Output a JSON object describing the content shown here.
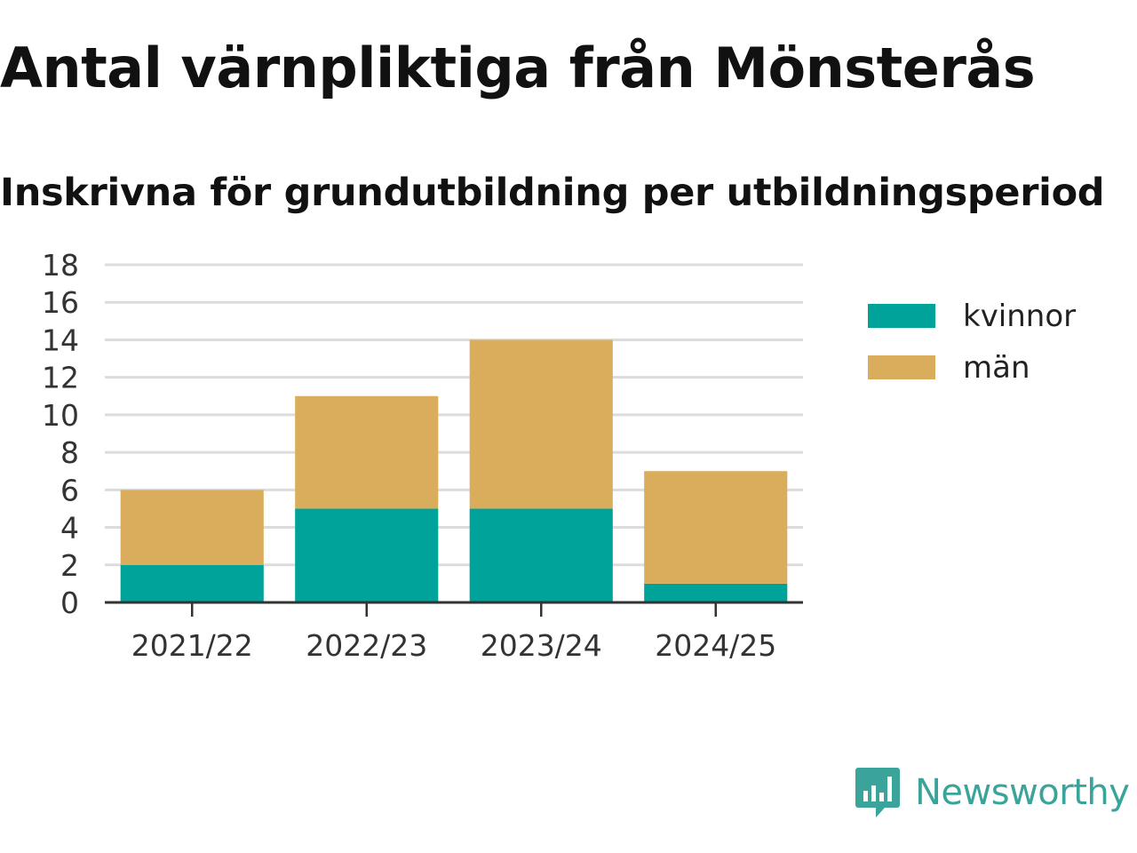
{
  "header": {
    "title": "Antal värnpliktiga från Mönsterås",
    "subtitle": "Inskrivna för grundutbildning per utbildningsperiod"
  },
  "brand": {
    "name": "Newsworthy",
    "icon": "bar-chart-speech-bubble-icon",
    "color": "#3aa39a"
  },
  "chart_data": {
    "type": "bar",
    "stacked": true,
    "title": "Antal värnpliktiga från Mönsterås",
    "subtitle": "Inskrivna för grundutbildning per utbildningsperiod",
    "xlabel": "",
    "ylabel": "",
    "categories": [
      "2021/22",
      "2022/23",
      "2023/24",
      "2024/25"
    ],
    "series": [
      {
        "name": "kvinnor",
        "color": "#00a39a",
        "values": [
          2,
          5,
          5,
          1
        ]
      },
      {
        "name": "män",
        "color": "#d9ad5b",
        "values": [
          4,
          6,
          9,
          6
        ]
      }
    ],
    "ylim": [
      0,
      18
    ],
    "yticks": [
      0,
      2,
      4,
      6,
      8,
      10,
      12,
      14,
      16,
      18
    ],
    "grid": true,
    "legend": "right"
  }
}
